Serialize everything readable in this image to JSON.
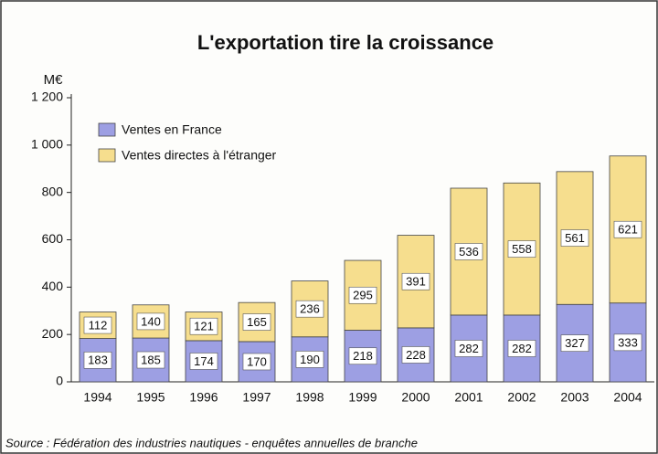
{
  "chart_data": {
    "type": "stacked_bar",
    "title": "L'exportation tire la croissance",
    "y_axis_label": "M€",
    "source": "Source : Fédération des industries nautiques  -  enquêtes annuelles de branche",
    "categories": [
      "1994",
      "1995",
      "1996",
      "1997",
      "1998",
      "1999",
      "2000",
      "2001",
      "2002",
      "2003",
      "2004"
    ],
    "series": [
      {
        "name": "Ventes en France",
        "color": "#9d9fe3",
        "values": [
          183,
          185,
          174,
          170,
          190,
          218,
          228,
          282,
          282,
          327,
          333
        ]
      },
      {
        "name": "Ventes directes à l'étranger",
        "color": "#f6de8e",
        "values": [
          112,
          140,
          121,
          165,
          236,
          295,
          391,
          536,
          558,
          561,
          621
        ]
      }
    ],
    "ylim": [
      0,
      1200
    ],
    "yticks": [
      0,
      200,
      400,
      600,
      800,
      {
        "value": 1000,
        "label": "1 000"
      },
      {
        "value": 1200,
        "label": "1 200"
      }
    ],
    "legend": "upper left"
  }
}
